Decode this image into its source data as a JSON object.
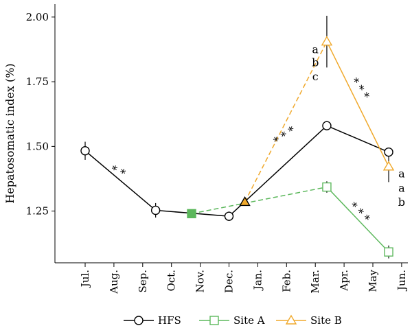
{
  "chart_data": {
    "type": "line",
    "ylabel": "Hepatosomatic index (%)",
    "xlabel": "",
    "ylim": [
      1.05,
      2.05
    ],
    "yticks": [
      "1.25",
      "1.50",
      "1.75",
      "2.00"
    ],
    "yticks_values": [
      1.25,
      1.5,
      1.75,
      2.0
    ],
    "categories": [
      "Jul.",
      "Aug.",
      "Sep.",
      "Oct.",
      "Nov.",
      "Dec.",
      "Jan.",
      "Feb.",
      "Mar.",
      "Apr.",
      "May",
      "Jun."
    ],
    "series": [
      {
        "name": "HFS",
        "color": "#000000",
        "marker": "circle",
        "points": [
          {
            "x": 0.0,
            "y": 1.483,
            "err": 0.035
          },
          {
            "x": 2.45,
            "y": 1.253,
            "err": 0.028
          },
          {
            "x": 5.0,
            "y": 1.23,
            "err": 0.018
          },
          {
            "x": 8.4,
            "y": 1.58,
            "err": 0.018
          },
          {
            "x": 10.55,
            "y": 1.478,
            "err": 0.015
          }
        ],
        "segments": [
          {
            "from": 0,
            "to": 1,
            "dash": false
          },
          {
            "from": 1,
            "to": 2,
            "dash": false
          },
          {
            "from": 2,
            "to": 3,
            "dash": false
          },
          {
            "from": 3,
            "to": 4,
            "dash": false
          }
        ]
      },
      {
        "name": "Site A",
        "color": "#5cb85c",
        "marker": "square",
        "points": [
          {
            "x": 3.7,
            "y": 1.24,
            "err": 0,
            "filled": true
          },
          {
            "x": 8.4,
            "y": 1.343,
            "err": 0.022
          },
          {
            "x": 10.55,
            "y": 1.092,
            "err": 0.025
          }
        ],
        "segments": [
          {
            "from": 0,
            "to": 1,
            "dash": true
          },
          {
            "from": 1,
            "to": 2,
            "dash": false
          }
        ]
      },
      {
        "name": "Site B",
        "color": "#f0a92c",
        "marker": "triangle",
        "points": [
          {
            "x": 5.55,
            "y": 1.285,
            "err": 0,
            "filled": true
          },
          {
            "x": 8.4,
            "y": 1.905,
            "err": 0.1
          },
          {
            "x": 10.55,
            "y": 1.422,
            "err": 0.06
          }
        ],
        "segments": [
          {
            "from": 0,
            "to": 1,
            "dash": true
          },
          {
            "from": 1,
            "to": 2,
            "dash": false
          }
        ]
      }
    ],
    "annotations": [
      {
        "text": "* *",
        "x": 1.1,
        "y": 1.39,
        "rotate": 22
      },
      {
        "text": "* * *",
        "x": 7.0,
        "y": 1.53,
        "rotate": -35
      },
      {
        "text": "* * *",
        "x": 9.45,
        "y": 1.715,
        "rotate": 55
      },
      {
        "text": "* * *",
        "x": 9.45,
        "y": 1.235,
        "rotate": 45
      },
      {
        "text": "a",
        "x": 8.0,
        "y": 1.86,
        "rotate": 0
      },
      {
        "text": "b",
        "x": 8.0,
        "y": 1.81,
        "rotate": 0
      },
      {
        "text": "c",
        "x": 8.0,
        "y": 1.755,
        "rotate": 0
      },
      {
        "text": "a",
        "x": 11.0,
        "y": 1.38,
        "rotate": 0
      },
      {
        "text": "a",
        "x": 11.0,
        "y": 1.325,
        "rotate": 0
      },
      {
        "text": "b",
        "x": 11.0,
        "y": 1.27,
        "rotate": 0
      }
    ],
    "grid": false,
    "legend_position": "bottom"
  }
}
